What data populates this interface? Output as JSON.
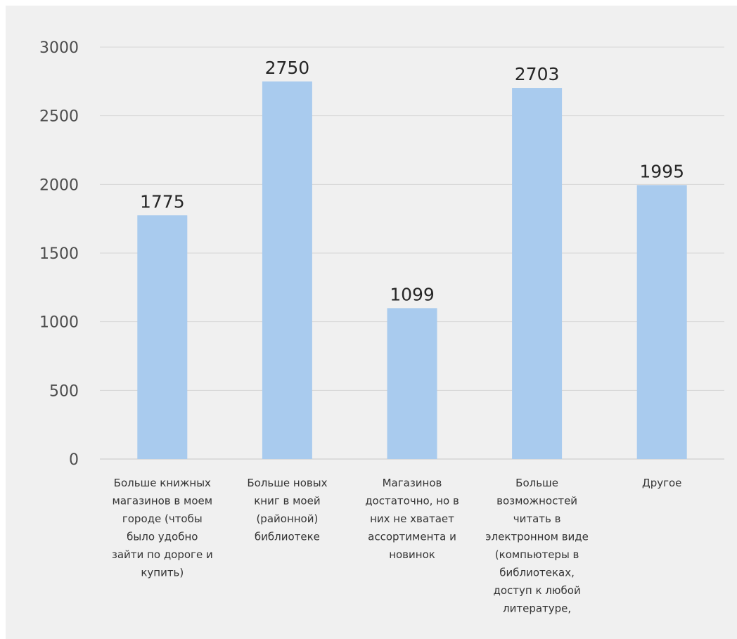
{
  "chart_data": {
    "type": "bar",
    "title": "",
    "xlabel": "",
    "ylabel": "",
    "ylim": [
      0,
      3000
    ],
    "yticks": [
      0,
      500,
      1000,
      1500,
      2000,
      2500,
      3000
    ],
    "grid": true,
    "legend": "none",
    "bar_color": "#a9cbee",
    "categories": [
      [
        "Больше книжных",
        "магазинов в моем",
        "городе (чтобы",
        "было удобно",
        "зайти по дороге и",
        "купить)"
      ],
      [
        "Больше новых",
        "книг в моей",
        "(районной)",
        "библиотеке"
      ],
      [
        "Магазинов",
        "достаточно, но в",
        "них не хватает",
        "ассортимента и",
        "новинок"
      ],
      [
        "Больше",
        "возможностей",
        "читать в",
        "электронном виде",
        "(компьютеры в",
        "библиотеках,",
        "доступ к любой",
        "литературе,"
      ],
      [
        "Другое"
      ]
    ],
    "values": [
      1775,
      2750,
      1099,
      2703,
      1995
    ],
    "data_labels": [
      "1775",
      "2750",
      "1099",
      "2703",
      "1995"
    ]
  }
}
